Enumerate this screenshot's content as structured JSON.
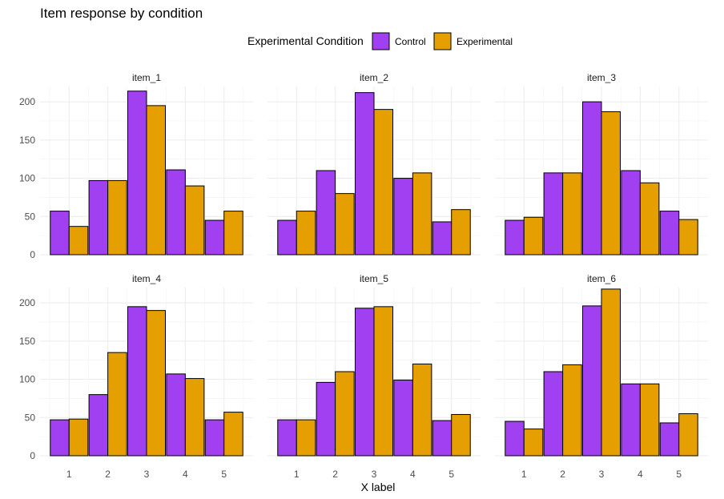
{
  "chart_data": {
    "type": "bar",
    "title": "Item response by condition",
    "xlabel": "X label",
    "ylabel": "",
    "ylim": [
      0,
      220
    ],
    "yticks": [
      0,
      50,
      100,
      150,
      200
    ],
    "categories": [
      "1",
      "2",
      "3",
      "4",
      "5"
    ],
    "grid": true,
    "legend": {
      "title": "Experimental Condition",
      "position": "top",
      "entries": [
        {
          "name": "Control",
          "color": "#a040f0"
        },
        {
          "name": "Experimental",
          "color": "#e69f00"
        }
      ]
    },
    "panels": [
      {
        "title": "item_1",
        "series": [
          {
            "name": "Control",
            "values": [
              57,
              97,
              214,
              111,
              45
            ]
          },
          {
            "name": "Experimental",
            "values": [
              37,
              97,
              195,
              90,
              57
            ]
          }
        ]
      },
      {
        "title": "item_2",
        "series": [
          {
            "name": "Control",
            "values": [
              45,
              110,
              212,
              100,
              43
            ]
          },
          {
            "name": "Experimental",
            "values": [
              57,
              80,
              190,
              107,
              59
            ]
          }
        ]
      },
      {
        "title": "item_3",
        "series": [
          {
            "name": "Control",
            "values": [
              45,
              107,
              200,
              110,
              57
            ]
          },
          {
            "name": "Experimental",
            "values": [
              49,
              107,
              187,
              94,
              46
            ]
          }
        ]
      },
      {
        "title": "item_4",
        "series": [
          {
            "name": "Control",
            "values": [
              47,
              80,
              195,
              107,
              47
            ]
          },
          {
            "name": "Experimental",
            "values": [
              48,
              135,
              190,
              101,
              57
            ]
          }
        ]
      },
      {
        "title": "item_5",
        "series": [
          {
            "name": "Control",
            "values": [
              47,
              96,
              193,
              99,
              46
            ]
          },
          {
            "name": "Experimental",
            "values": [
              47,
              110,
              195,
              120,
              54
            ]
          }
        ]
      },
      {
        "title": "item_6",
        "series": [
          {
            "name": "Control",
            "values": [
              45,
              110,
              196,
              94,
              43
            ]
          },
          {
            "name": "Experimental",
            "values": [
              35,
              119,
              218,
              94,
              55
            ]
          }
        ]
      }
    ]
  }
}
